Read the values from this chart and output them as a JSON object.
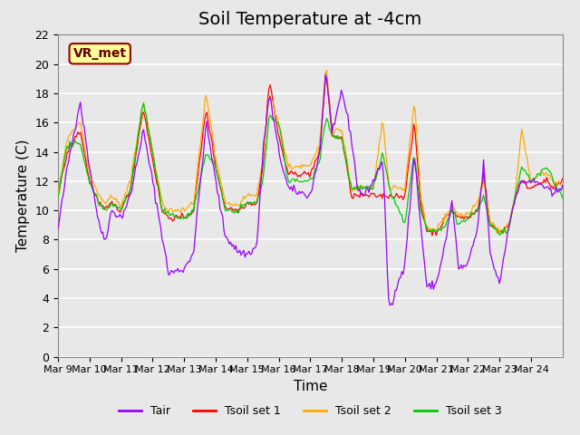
{
  "title": "Soil Temperature at -4cm",
  "xlabel": "Time",
  "ylabel": "Temperature (C)",
  "ylim": [
    0,
    22
  ],
  "yticks": [
    0,
    2,
    4,
    6,
    8,
    10,
    12,
    14,
    16,
    18,
    20,
    22
  ],
  "xtick_labels": [
    "Mar 9",
    "Mar 10",
    "Mar 11",
    "Mar 12",
    "Mar 13",
    "Mar 14",
    "Mar 15",
    "Mar 16",
    "Mar 17",
    "Mar 18",
    "Mar 19",
    "Mar 20",
    "Mar 21",
    "Mar 22",
    "Mar 23",
    "Mar 24"
  ],
  "legend_entries": [
    "Tair",
    "Tsoil set 1",
    "Tsoil set 2",
    "Tsoil set 3"
  ],
  "line_colors": [
    "#9900ff",
    "#ff0000",
    "#ffaa00",
    "#00cc00"
  ],
  "annotation_text": "VR_met",
  "annotation_box_color": "#ffff99",
  "annotation_text_color": "#660000",
  "background_color": "#e8e8e8",
  "grid_color": "#ffffff",
  "title_fontsize": 14,
  "axis_label_fontsize": 11
}
